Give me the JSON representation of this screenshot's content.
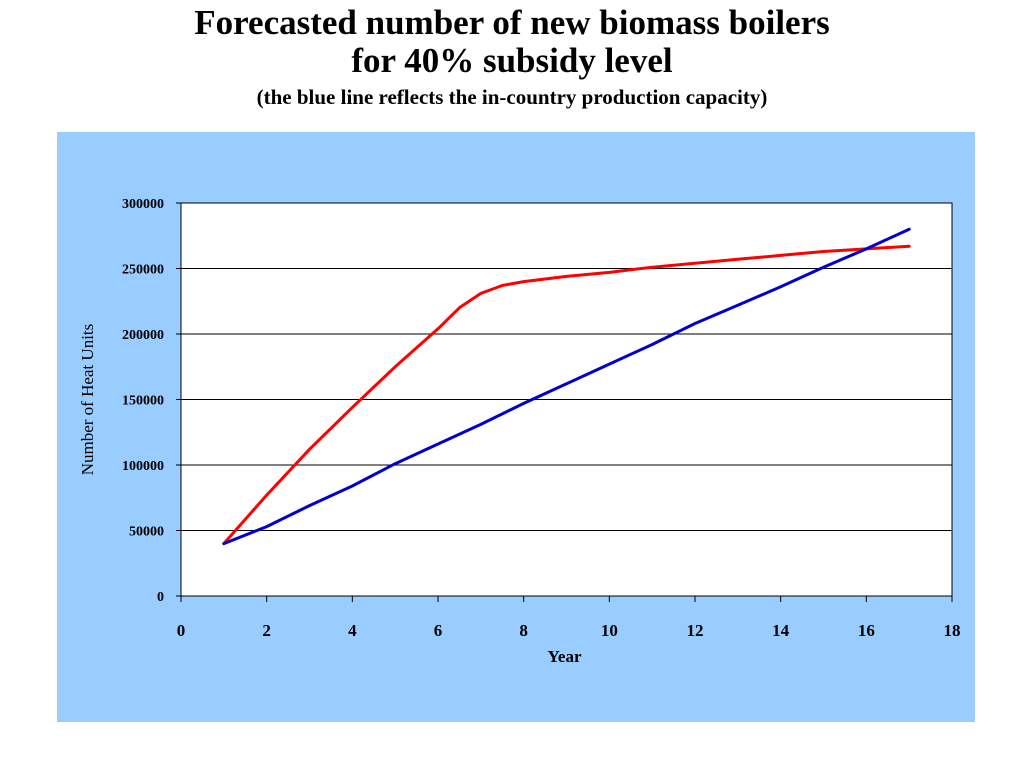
{
  "chart_data": {
    "type": "line",
    "title_lines": [
      "Forecasted number of new biomass boilers",
      "for 40% subsidy level"
    ],
    "subtitle": "(the blue line reflects the in-country production capacity)",
    "xlabel": "Year",
    "ylabel": "Number of Heat Units",
    "xlim": [
      0,
      18
    ],
    "ylim": [
      0,
      300000
    ],
    "x_ticks": [
      0,
      2,
      4,
      6,
      8,
      10,
      12,
      14,
      16,
      18
    ],
    "y_ticks": [
      0,
      50000,
      100000,
      150000,
      200000,
      250000,
      300000
    ],
    "grid": "horizontal",
    "legend": "none",
    "background_color": "#99ccff",
    "plot_background": "#ffffff",
    "series": [
      {
        "color": "#ff0000",
        "x": [
          1,
          2,
          3,
          4,
          5,
          6,
          6.5,
          7,
          7.5,
          8,
          9,
          10,
          11,
          12,
          13,
          14,
          15,
          16,
          17
        ],
        "y": [
          40000,
          77000,
          112000,
          144000,
          175000,
          204000,
          220000,
          231000,
          237000,
          240000,
          244000,
          247000,
          251000,
          254000,
          257000,
          260000,
          263000,
          265000,
          267000
        ]
      },
      {
        "color": "#0000cc",
        "x": [
          1,
          2,
          3,
          4,
          5,
          6,
          7,
          8,
          9,
          10,
          11,
          12,
          13,
          14,
          15,
          16,
          17
        ],
        "y": [
          40000,
          53000,
          69000,
          84000,
          101000,
          116000,
          131000,
          147000,
          162000,
          177000,
          192000,
          208000,
          222000,
          236000,
          251000,
          265000,
          280000
        ]
      }
    ]
  }
}
